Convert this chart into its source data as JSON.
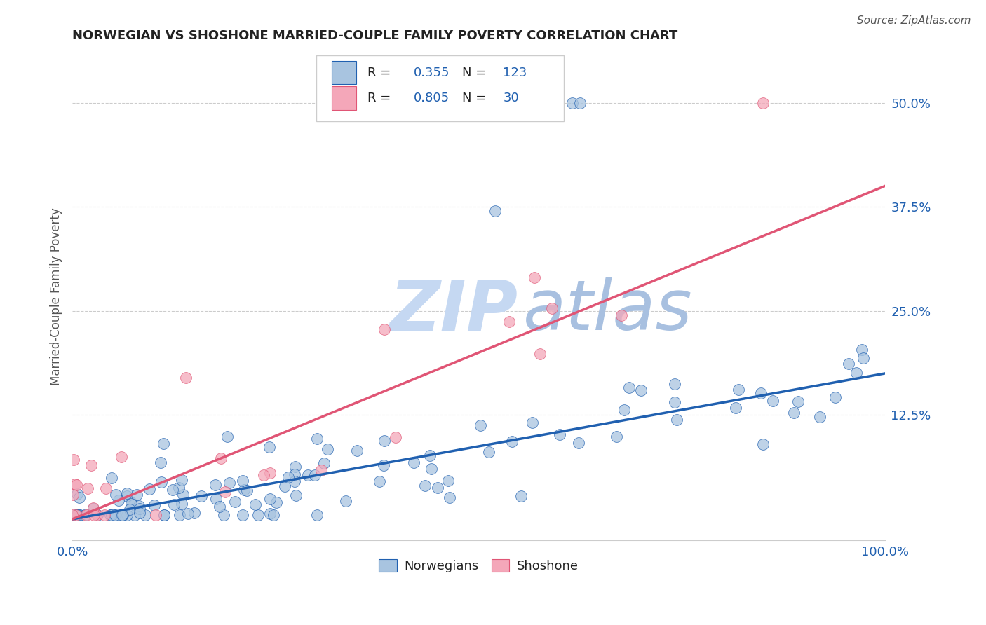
{
  "title": "NORWEGIAN VS SHOSHONE MARRIED-COUPLE FAMILY POVERTY CORRELATION CHART",
  "source": "Source: ZipAtlas.com",
  "ylabel": "Married-Couple Family Poverty",
  "xlabel_ticks": [
    "0.0%",
    "100.0%"
  ],
  "ytick_labels": [
    "50.0%",
    "37.5%",
    "25.0%",
    "12.5%"
  ],
  "ytick_values": [
    0.5,
    0.375,
    0.25,
    0.125
  ],
  "xlim": [
    0.0,
    1.0
  ],
  "ylim": [
    -0.025,
    0.56
  ],
  "legend_label1": "Norwegians",
  "legend_label2": "Shoshone",
  "R_norwegian": 0.355,
  "N_norwegian": 123,
  "R_shoshone": 0.805,
  "N_shoshone": 30,
  "color_norwegian": "#a8c4e0",
  "color_shoshone": "#f4a7b9",
  "line_color_norwegian": "#2060b0",
  "line_color_shoshone": "#e05575",
  "watermark_zip_color": "#c5d8f0",
  "watermark_atlas_color": "#a0b8d8",
  "background_color": "#ffffff",
  "title_color": "#222222",
  "grid_color": "#cccccc",
  "nor_line_y0": 0.0,
  "nor_line_y1": 0.175,
  "sho_line_y0": 0.0,
  "sho_line_y1": 0.4
}
